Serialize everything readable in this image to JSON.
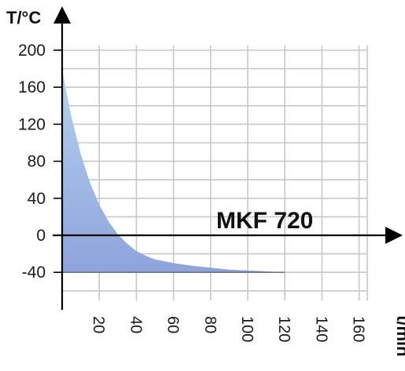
{
  "chart_data": {
    "type": "area",
    "title": "",
    "annotation": "MKF 720",
    "ylabel": "T/°C",
    "xlabel": "t/min",
    "xlim": [
      0,
      165
    ],
    "ylim": [
      -70,
      200
    ],
    "x_ticks": [
      20,
      40,
      60,
      80,
      100,
      120,
      140,
      160
    ],
    "x_tick_labels": [
      "20",
      "40",
      "60",
      "80",
      "100",
      "120",
      "140",
      "160"
    ],
    "y_ticks": [
      200,
      160,
      120,
      80,
      40,
      0,
      -40
    ],
    "y_tick_labels": [
      "200",
      "160",
      "120",
      "80",
      "40",
      "0",
      "-40"
    ],
    "grid": true,
    "fill_color": "#8fa3db",
    "fill_color_top": "#b4d2ef",
    "series": [
      {
        "x": [
          0,
          2,
          5,
          10,
          15,
          20,
          25,
          30,
          35,
          40,
          45,
          50,
          55,
          60,
          70,
          80,
          90,
          100,
          110,
          120
        ],
        "y": [
          180,
          158,
          128,
          88,
          57,
          33,
          15,
          1,
          -9,
          -17,
          -22,
          -26,
          -28,
          -30,
          -33,
          -35,
          -37,
          -38,
          -39,
          -40
        ]
      }
    ]
  }
}
